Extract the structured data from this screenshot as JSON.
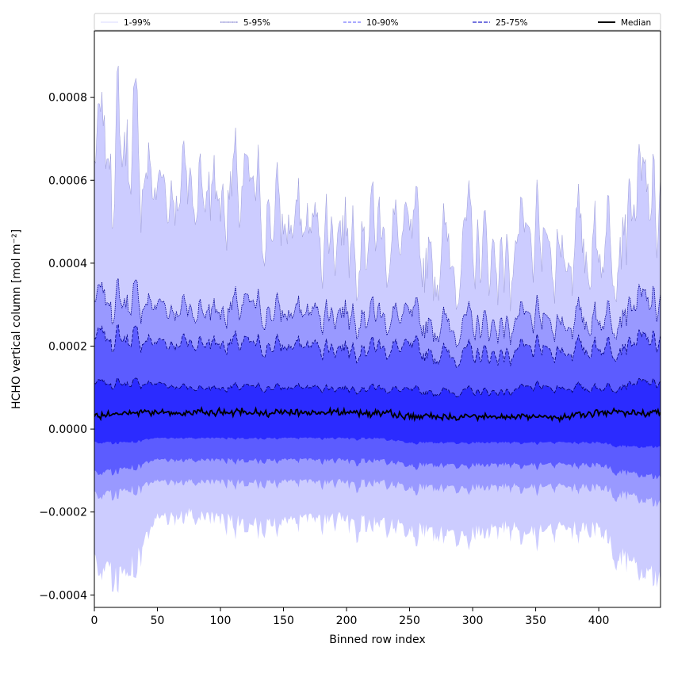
{
  "chart_data": {
    "type": "area",
    "xlabel": "Binned row index",
    "ylabel": "HCHO vertical column [mol m⁻²]",
    "xlim": [
      0,
      449
    ],
    "ylim": [
      -0.00043,
      0.00096
    ],
    "xticks": [
      0,
      50,
      100,
      150,
      200,
      250,
      300,
      350,
      400
    ],
    "yticks": [
      -0.0004,
      -0.0002,
      0.0,
      0.0002,
      0.0004,
      0.0006,
      0.0008
    ],
    "ytick_labels": [
      "−0.0004",
      "−0.0002",
      "0.0000",
      "0.0002",
      "0.0004",
      "0.0006",
      "0.0008"
    ],
    "legend_position": "top, across full width",
    "legend": [
      {
        "label": "1-99%",
        "color": "#ccccff",
        "style": "solid-thin"
      },
      {
        "label": "5-95%",
        "color": "#0000a0",
        "style": "dotted"
      },
      {
        "label": "10-90%",
        "color": "#5555ff",
        "style": "dashed"
      },
      {
        "label": "25-75%",
        "color": "#2222cc",
        "style": "dashed"
      },
      {
        "label": "Median",
        "color": "#000000",
        "style": "solid"
      }
    ],
    "x": [
      0,
      25,
      50,
      75,
      100,
      125,
      150,
      175,
      200,
      225,
      250,
      275,
      300,
      325,
      350,
      375,
      400,
      425,
      449
    ],
    "series": [
      {
        "name": "1-99%",
        "fill": "#ccccff",
        "upper": [
          0.00065,
          0.0007,
          0.00058,
          0.0006,
          0.00058,
          0.00055,
          0.0005,
          0.00048,
          0.0005,
          0.00049,
          0.00043,
          0.00042,
          0.00044,
          0.00041,
          0.00043,
          0.00044,
          0.00045,
          0.00055,
          0.00053
        ],
        "lower": [
          -0.0003,
          -0.00033,
          -0.0002,
          -0.00019,
          -0.0002,
          -0.00021,
          -0.00021,
          -0.0002,
          -0.0002,
          -0.00021,
          -0.00022,
          -0.00023,
          -0.00023,
          -0.00022,
          -0.00023,
          -0.00022,
          -0.00022,
          -0.0003,
          -0.00034
        ]
      },
      {
        "name": "5-95%",
        "fill": "#9999ff",
        "upper": [
          0.00031,
          0.00031,
          0.0003,
          0.00029,
          0.00029,
          0.00029,
          0.00028,
          0.00028,
          0.00029,
          0.00028,
          0.00026,
          0.00025,
          0.00025,
          0.00025,
          0.00026,
          0.00026,
          0.00027,
          0.0003,
          0.0003
        ],
        "lower": [
          -0.00015,
          -0.00014,
          -0.00012,
          -0.00012,
          -0.00012,
          -0.00012,
          -0.00012,
          -0.00012,
          -0.00012,
          -0.00012,
          -0.00013,
          -0.00013,
          -0.00013,
          -0.00013,
          -0.00013,
          -0.00013,
          -0.00013,
          -0.00015,
          -0.00017
        ]
      },
      {
        "name": "10-90%",
        "fill": "#5c5cff",
        "upper": [
          0.00022,
          0.00022,
          0.00021,
          0.00021,
          0.00021,
          0.0002,
          0.0002,
          0.0002,
          0.0002,
          0.0002,
          0.00019,
          0.00018,
          0.00018,
          0.00018,
          0.00019,
          0.00019,
          0.0002,
          0.00021,
          0.00021
        ],
        "lower": [
          -0.0001,
          -9e-05,
          -7e-05,
          -7e-05,
          -7e-05,
          -7e-05,
          -7e-05,
          -7e-05,
          -7e-05,
          -7e-05,
          -8e-05,
          -8e-05,
          -8e-05,
          -8e-05,
          -8e-05,
          -8e-05,
          -8e-05,
          -0.0001,
          -0.00011
        ]
      },
      {
        "name": "25-75%",
        "fill": "#2b2bff",
        "upper": [
          0.00011,
          0.00011,
          0.00011,
          0.0001,
          0.0001,
          0.0001,
          0.0001,
          0.0001,
          0.0001,
          0.0001,
          9e-05,
          9e-05,
          9e-05,
          9e-05,
          0.0001,
          0.0001,
          0.0001,
          0.00011,
          0.00011
        ],
        "lower": [
          -3e-05,
          -3e-05,
          -2e-05,
          -2e-05,
          -2e-05,
          -2e-05,
          -2e-05,
          -2e-05,
          -2e-05,
          -2e-05,
          -3e-05,
          -3e-05,
          -3e-05,
          -3e-05,
          -3e-05,
          -3e-05,
          -3e-05,
          -4e-05,
          -4e-05
        ]
      },
      {
        "name": "Median",
        "line": "#000000",
        "values": [
          3e-05,
          4e-05,
          4e-05,
          4e-05,
          4e-05,
          4e-05,
          4e-05,
          4e-05,
          4e-05,
          4e-05,
          3e-05,
          3e-05,
          3e-05,
          3e-05,
          3e-05,
          3e-05,
          4e-05,
          4e-05,
          4e-05
        ]
      }
    ]
  }
}
